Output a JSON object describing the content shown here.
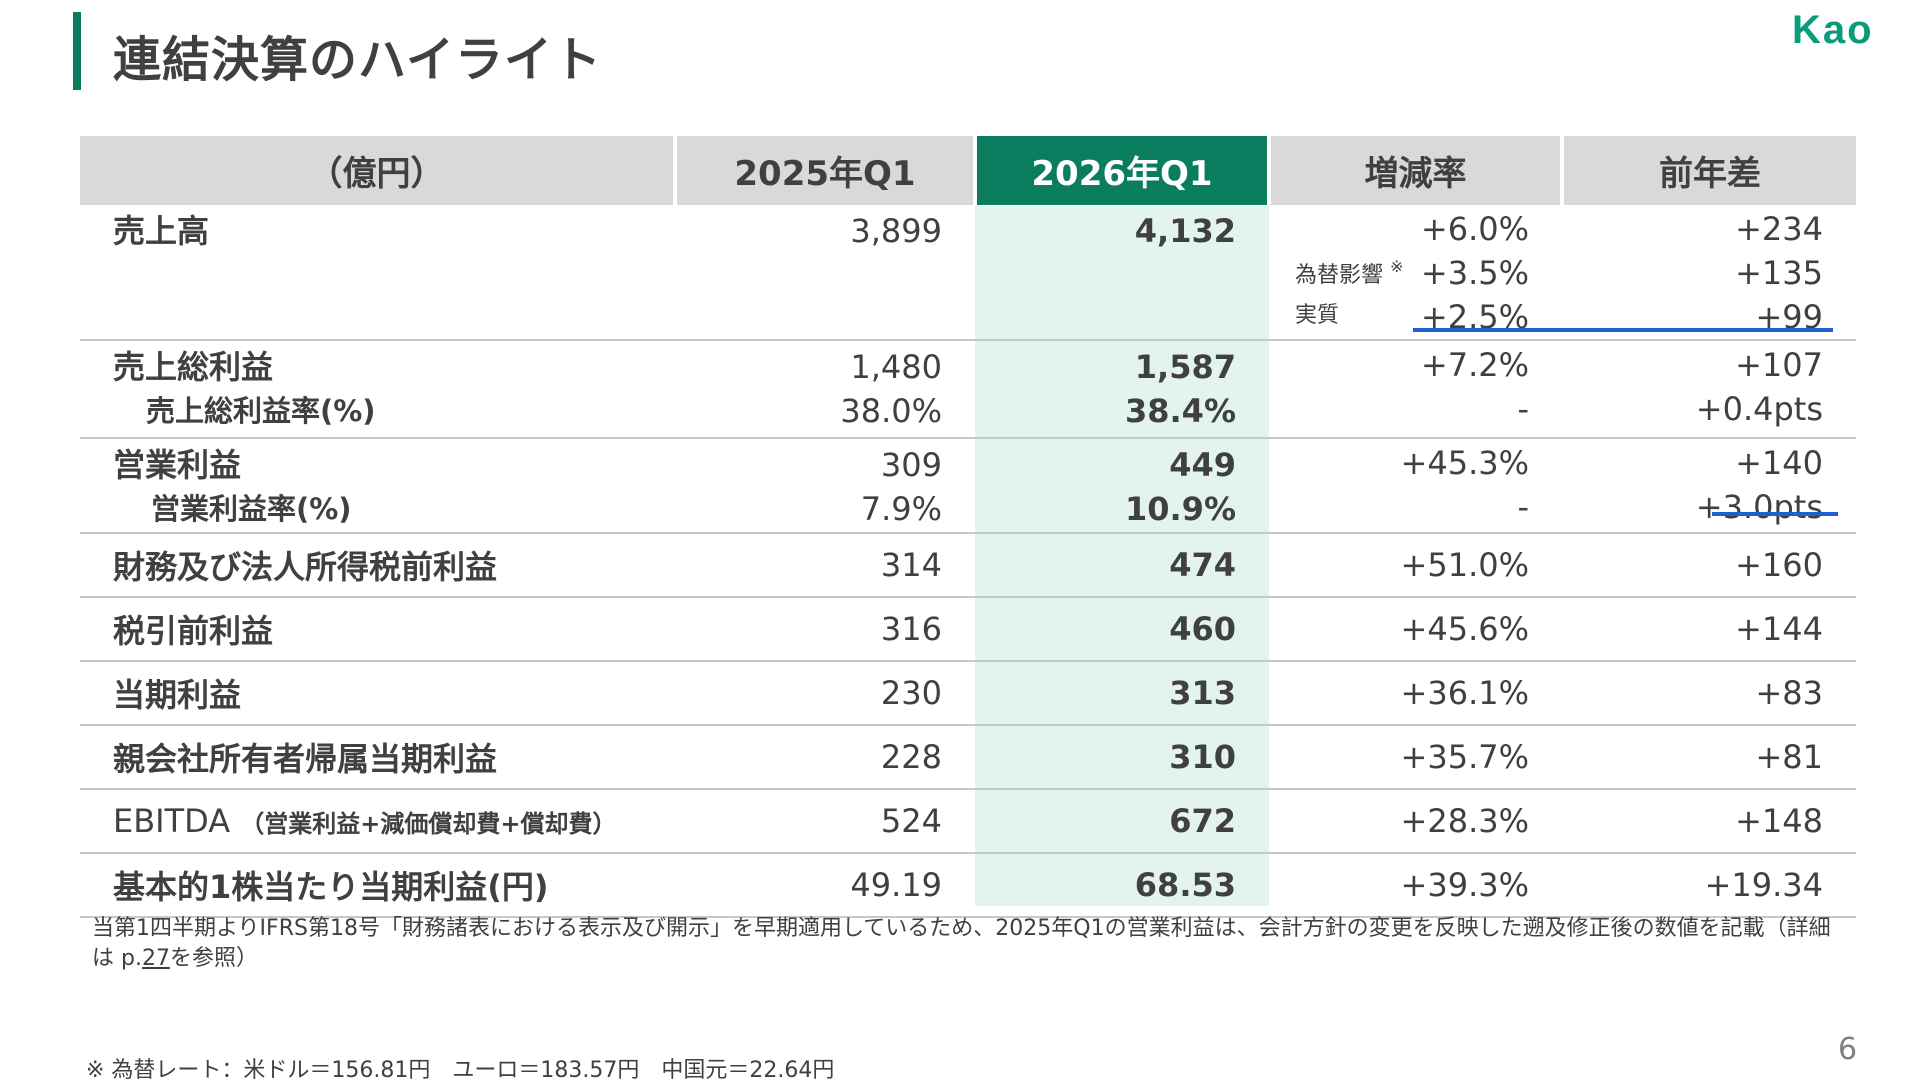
{
  "title": "連結決算のハイライト",
  "logo": "Kao",
  "page_number": "6",
  "table": {
    "headers": [
      "（億円）",
      "2025年Q1",
      "2026年Q1",
      "増減率",
      "前年差"
    ],
    "sales": {
      "label": "売上高",
      "q1_2025": "3,899",
      "q1_2026": "4,132",
      "rate": [
        "+6.0%",
        "+3.5%",
        "+2.5%"
      ],
      "diff": [
        "+234",
        "+135",
        "+99"
      ],
      "fx_label": "為替影響",
      "fx_mark": "※",
      "real_label": "実質"
    },
    "gross": {
      "label": "売上総利益",
      "q1_2025": "1,480",
      "q1_2026": "1,587",
      "rate": "+7.2%",
      "diff": "+107",
      "sub_label": "売上総利益率(%)",
      "sub_2025": "38.0%",
      "sub_2026": "38.4%",
      "sub_rate": "-",
      "sub_diff": "+0.4pts"
    },
    "operating": {
      "label": "営業利益",
      "q1_2025": "309",
      "q1_2026": "449",
      "rate": "+45.3%",
      "diff": "+140",
      "sub_label": "営業利益率(%)",
      "sub_2025": "7.9%",
      "sub_2026": "10.9%",
      "sub_rate": "-",
      "sub_diff": "+3.0pts"
    },
    "rows": [
      {
        "label": "財務及び法人所得税前利益",
        "q1_2025": "314",
        "q1_2026": "474",
        "rate": "+51.0%",
        "diff": "+160"
      },
      {
        "label": "税引前利益",
        "q1_2025": "316",
        "q1_2026": "460",
        "rate": "+45.6%",
        "diff": "+144"
      },
      {
        "label": "当期利益",
        "q1_2025": "230",
        "q1_2026": "313",
        "rate": "+36.1%",
        "diff": "+83"
      },
      {
        "label": "親会社所有者帰属当期利益",
        "q1_2025": "228",
        "q1_2026": "310",
        "rate": "+35.7%",
        "diff": "+81"
      }
    ],
    "ebitda": {
      "label": "EBITDA",
      "sub": "（営業利益+減価償却費+償却費）",
      "q1_2025": "524",
      "q1_2026": "672",
      "rate": "+28.3%",
      "diff": "+148"
    },
    "eps": {
      "label": "基本的1株当たり当期利益(円)",
      "q1_2025": "49.19",
      "q1_2026": "68.53",
      "rate": "+39.3%",
      "diff": "+19.34"
    }
  },
  "footnote1_a": "当第1四半期よりIFRS第18号「財務諸表における表示及び開示」を早期適用しているため、2025年Q1の営業利益は、会計方針の変更を反映した遡及修正後の数値を記載（詳細は p.",
  "footnote1_link": "27",
  "footnote1_b": "を参照）",
  "footnote2": "※ 為替レート：米ドル＝156.81円　ユーロ＝183.57円　中国元＝22.64円",
  "colors": {
    "accent": "#0a7d5e",
    "highlight_col": "#e3f3ef",
    "header_bg": "#d9d9d9",
    "underline": "#1f5fd0"
  }
}
